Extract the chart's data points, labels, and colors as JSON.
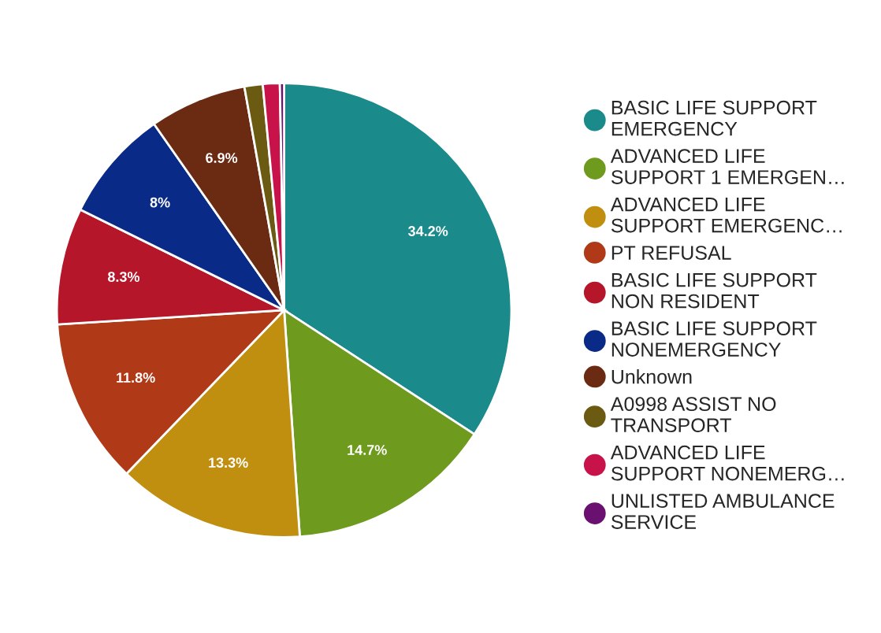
{
  "chart_data": {
    "type": "pie",
    "categories": [
      "BASIC LIFE SUPPORT\nEMERGENCY",
      "ADVANCED LIFE\nSUPPORT 1 EMERGEN…",
      "ADVANCED LIFE\nSUPPORT EMERGENC…",
      "PT REFUSAL",
      "BASIC LIFE SUPPORT\nNON RESIDENT",
      "BASIC LIFE SUPPORT\nNONEMERGENCY",
      "Unknown",
      "A0998 ASSIST NO\nTRANSPORT",
      "ADVANCED LIFE\nSUPPORT NONEMERG…",
      "UNLISTED AMBULANCE\nSERVICE"
    ],
    "values": [
      34.2,
      14.7,
      13.3,
      11.8,
      8.3,
      8,
      6.9,
      1.3,
      1.2,
      0.3
    ],
    "value_labels": [
      "34.2%",
      "14.7%",
      "13.3%",
      "11.8%",
      "8.3%",
      "8%",
      "6.9%",
      null,
      null,
      null
    ],
    "colors": [
      "#1a8a8a",
      "#6e9a1e",
      "#c08f10",
      "#b03a18",
      "#b5162a",
      "#0a2a88",
      "#6b2a12",
      "#6b5a12",
      "#c8124a",
      "#6a1070"
    ],
    "legend": "right"
  }
}
